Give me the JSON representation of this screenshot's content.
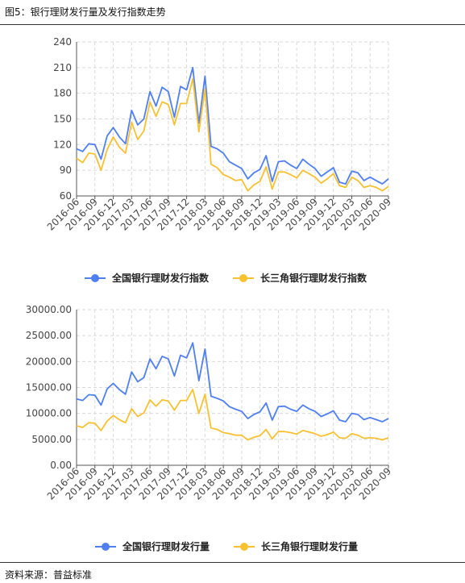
{
  "figure": {
    "title": "图5：银行理财发行量及发行指数走势",
    "source": "资料来源：普益标准"
  },
  "colors": {
    "series1": "#4f7ff0",
    "series2": "#f7c131",
    "grid": "#d9d9d9"
  },
  "chart_data": [
    {
      "type": "line",
      "ylim": [
        60,
        240
      ],
      "yticks": [
        "60",
        "90",
        "120",
        "150",
        "180",
        "210",
        "240"
      ],
      "grid": true,
      "legend": "bottom",
      "xticks": [
        "2016-06",
        "2016-09",
        "2016-12",
        "2017-03",
        "2017-06",
        "2017-09",
        "2017-12",
        "2018-03",
        "2018-06",
        "2018-09",
        "2018-12",
        "2019-03",
        "2019-06",
        "2019-09",
        "2019-12",
        "2020-03",
        "2020-06",
        "2020-09"
      ],
      "x": [
        "2016-06",
        "2016-07",
        "2016-08",
        "2016-09",
        "2016-10",
        "2016-11",
        "2016-12",
        "2017-01",
        "2017-02",
        "2017-03",
        "2017-04",
        "2017-05",
        "2017-06",
        "2017-07",
        "2017-08",
        "2017-09",
        "2017-10",
        "2017-11",
        "2017-12",
        "2018-01",
        "2018-02",
        "2018-03",
        "2018-04",
        "2018-05",
        "2018-06",
        "2018-07",
        "2018-08",
        "2018-09",
        "2018-10",
        "2018-11",
        "2018-12",
        "2019-01",
        "2019-02",
        "2019-03",
        "2019-04",
        "2019-05",
        "2019-06",
        "2019-07",
        "2019-08",
        "2019-09",
        "2019-10",
        "2019-11",
        "2019-12",
        "2020-01",
        "2020-02",
        "2020-03",
        "2020-04",
        "2020-05",
        "2020-06",
        "2020-07",
        "2020-08",
        "2020-09"
      ],
      "series": [
        {
          "name": "全国银行理财发行指数",
          "values": [
            115,
            112,
            121,
            120,
            103,
            130,
            140,
            129,
            121,
            160,
            143,
            150,
            182,
            165,
            187,
            182,
            152,
            188,
            184,
            210,
            145,
            200,
            118,
            115,
            110,
            100,
            96,
            92,
            80,
            87,
            91,
            107,
            77,
            100,
            101,
            96,
            92,
            103,
            97,
            92,
            83,
            88,
            93,
            76,
            74,
            89,
            87,
            78,
            82,
            78,
            74,
            80
          ]
        },
        {
          "name": "长三角银行理财发行指数",
          "values": [
            104,
            99,
            110,
            109,
            90,
            114,
            129,
            117,
            110,
            146,
            126,
            136,
            170,
            153,
            170,
            167,
            143,
            168,
            168,
            197,
            135,
            185,
            97,
            93,
            85,
            82,
            78,
            79,
            66,
            73,
            77,
            94,
            68,
            88,
            88,
            85,
            81,
            90,
            86,
            82,
            75,
            80,
            86,
            72,
            70,
            82,
            78,
            70,
            72,
            70,
            66,
            71
          ]
        }
      ]
    },
    {
      "type": "line",
      "ylim": [
        0,
        30000
      ],
      "yticks": [
        "0.00",
        "5000.00",
        "10000.00",
        "15000.00",
        "20000.00",
        "25000.00",
        "30000.00"
      ],
      "grid": true,
      "legend": "bottom",
      "xticks": [
        "2016-06",
        "2016-09",
        "2016-12",
        "2017-03",
        "2017-06",
        "2017-09",
        "2017-12",
        "2018-03",
        "2018-06",
        "2018-09",
        "2018-12",
        "2019-03",
        "2019-06",
        "2019-09",
        "2019-12",
        "2020-03",
        "2020-06",
        "2020-09"
      ],
      "x": [
        "2016-06",
        "2016-07",
        "2016-08",
        "2016-09",
        "2016-10",
        "2016-11",
        "2016-12",
        "2017-01",
        "2017-02",
        "2017-03",
        "2017-04",
        "2017-05",
        "2017-06",
        "2017-07",
        "2017-08",
        "2017-09",
        "2017-10",
        "2017-11",
        "2017-12",
        "2018-01",
        "2018-02",
        "2018-03",
        "2018-04",
        "2018-05",
        "2018-06",
        "2018-07",
        "2018-08",
        "2018-09",
        "2018-10",
        "2018-11",
        "2018-12",
        "2019-01",
        "2019-02",
        "2019-03",
        "2019-04",
        "2019-05",
        "2019-06",
        "2019-07",
        "2019-08",
        "2019-09",
        "2019-10",
        "2019-11",
        "2019-12",
        "2020-01",
        "2020-02",
        "2020-03",
        "2020-04",
        "2020-05",
        "2020-06",
        "2020-07",
        "2020-08",
        "2020-09"
      ],
      "series": [
        {
          "name": "全国银行理财发行量",
          "values": [
            12800,
            12500,
            13600,
            13500,
            11600,
            14700,
            15800,
            14600,
            13700,
            18000,
            16100,
            16900,
            20500,
            18600,
            21000,
            20500,
            17200,
            21200,
            20700,
            23600,
            16300,
            22400,
            13300,
            12900,
            12400,
            11300,
            10800,
            10400,
            9000,
            9800,
            10300,
            12000,
            8700,
            11300,
            11400,
            10800,
            10400,
            11600,
            10900,
            10400,
            9400,
            9900,
            10500,
            8700,
            8400,
            10000,
            9800,
            8800,
            9200,
            8800,
            8400,
            9000
          ]
        },
        {
          "name": "长三角银行理财发行量",
          "values": [
            7600,
            7300,
            8200,
            8100,
            6700,
            8500,
            9600,
            8800,
            8200,
            10900,
            9400,
            10100,
            12600,
            11400,
            12600,
            12400,
            10600,
            12500,
            12500,
            14600,
            10000,
            13700,
            7200,
            6900,
            6300,
            6100,
            5800,
            5800,
            4900,
            5400,
            5700,
            6900,
            5100,
            6500,
            6500,
            6300,
            6000,
            6700,
            6400,
            6100,
            5600,
            5900,
            6400,
            5300,
            5200,
            6100,
            5800,
            5200,
            5300,
            5200,
            4900,
            5300
          ]
        }
      ]
    }
  ]
}
